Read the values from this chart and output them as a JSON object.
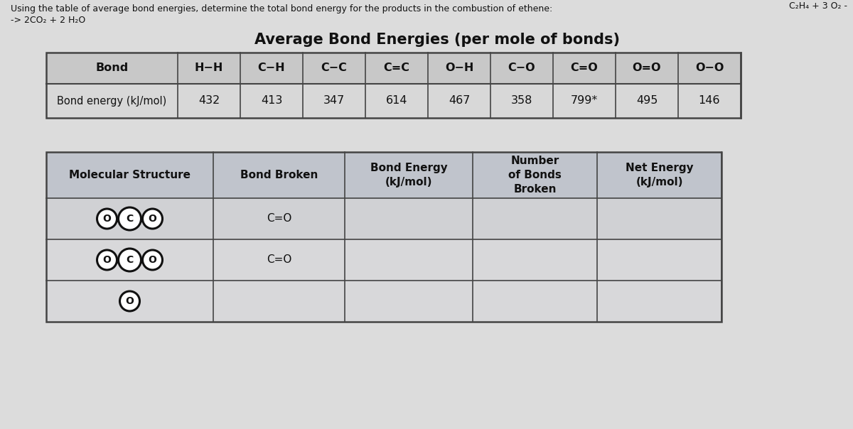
{
  "title_text": "Using the table of average bond energies, determine the total bond energy for the products in the combustion of ethene:",
  "subtitle_text": "-> 2CO₂ + 2 H₂O",
  "top_right_text": "C₂H₄ + 3 O₂ -",
  "table1_title": "Average Bond Energies (per mole of bonds)",
  "table1_col_headers": [
    "Bond",
    "H−H",
    "C−H",
    "C−C",
    "C=C",
    "O−H",
    "C−O",
    "C=O",
    "O=O",
    "O−O"
  ],
  "table1_row_label": "Bond energy (kJ/mol)",
  "table1_values": [
    "432",
    "413",
    "347",
    "614",
    "467",
    "358",
    "799*",
    "495",
    "146"
  ],
  "table2_col_headers": [
    "Molecular Structure",
    "Bond Broken",
    "Bond Energy\n(kJ/mol)",
    "Number\nof Bonds\nBroken",
    "Net Energy\n(kJ/mol)"
  ],
  "table2_bond_broken": [
    "C=O",
    "C=O"
  ],
  "bg_color": "#dcdcdc",
  "table1_header_bg": "#c8c8c8",
  "table1_row_bg": "#d8d8d8",
  "table2_header_bg": "#c0c4cc",
  "table2_row1_bg": "#d0d1d4",
  "table2_row2_bg": "#d8d8da",
  "table2_row3_bg": "#d8d8da",
  "border_color": "#444444",
  "text_color": "#111111"
}
